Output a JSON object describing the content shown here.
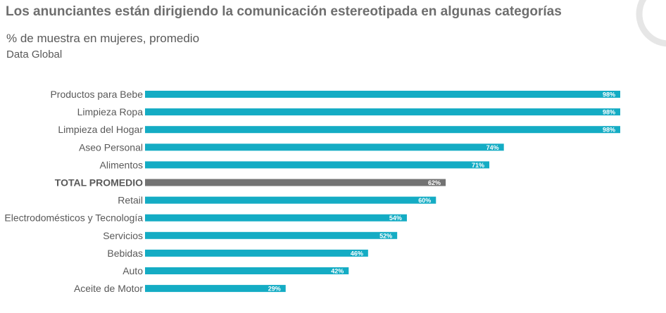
{
  "chart_data": {
    "type": "bar",
    "orientation": "horizontal",
    "title": "Los anunciantes están dirigiendo la comunicación estereotipada en algunas categorías",
    "subtitle": "% de muestra en mujeres, promedio",
    "source_note": "Data Global",
    "categories": [
      "Productos para Bebe",
      "Limpieza Ropa",
      "Limpieza del Hogar",
      "Aseo Personal",
      "Alimentos",
      "TOTAL PROMEDIO",
      "Retail",
      "Electrodomésticos y Tecnología",
      "Servicios",
      "Bebidas",
      "Auto",
      "Aceite de Motor"
    ],
    "values": [
      98,
      98,
      98,
      74,
      71,
      62,
      60,
      54,
      52,
      46,
      42,
      29
    ],
    "data_labels": [
      "98%",
      "98%",
      "98%",
      "74%",
      "71%",
      "62%",
      "60%",
      "54%",
      "52%",
      "46%",
      "42%",
      "29%"
    ],
    "highlight_index": 5,
    "xlim": [
      0,
      100
    ],
    "grid": false,
    "colors": {
      "bar": "#14acc4",
      "highlight": "#737373"
    }
  }
}
